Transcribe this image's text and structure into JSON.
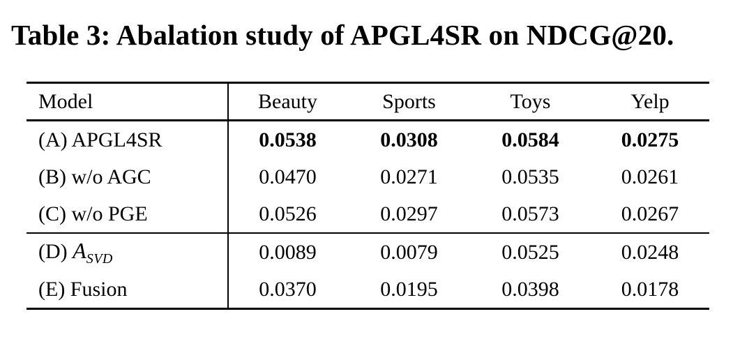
{
  "caption": {
    "text": "Table 3: Abalation study of APGL4SR on NDCG@20."
  },
  "table": {
    "metric": "NDCG@20",
    "columns": [
      "Model",
      "Beauty",
      "Sports",
      "Toys",
      "Yelp"
    ],
    "rows": [
      {
        "label": "(A) APGL4SR",
        "bold_values": true,
        "values": [
          "0.0538",
          "0.0308",
          "0.0584",
          "0.0275"
        ]
      },
      {
        "label": "(B) w/o AGC",
        "bold_values": false,
        "values": [
          "0.0470",
          "0.0271",
          "0.0535",
          "0.0261"
        ]
      },
      {
        "label": "(C) w/o PGE",
        "bold_values": false,
        "values": [
          "0.0526",
          "0.0297",
          "0.0573",
          "0.0267"
        ]
      },
      {
        "label": "(D) ",
        "label_math": "A",
        "label_sub": "SVD",
        "bold_values": false,
        "values": [
          "0.0089",
          "0.0079",
          "0.0525",
          "0.0248"
        ]
      },
      {
        "label": "(E) Fusion",
        "bold_values": false,
        "values": [
          "0.0370",
          "0.0195",
          "0.0398",
          "0.0178"
        ]
      }
    ],
    "colors": {
      "text": "#000000",
      "background": "#ffffff",
      "rule": "#000000"
    }
  }
}
